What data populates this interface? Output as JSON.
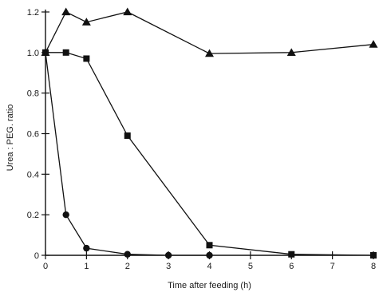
{
  "chart_data": {
    "type": "line",
    "xlabel": "Time after feeding (h)",
    "ylabel": "Urea : PEG. ratio",
    "xlim": [
      0,
      8
    ],
    "ylim": [
      0,
      1.2
    ],
    "xticks": [
      0,
      1,
      2,
      3,
      4,
      5,
      6,
      7,
      8
    ],
    "yticks": [
      0,
      0.2,
      0.4,
      0.6,
      0.8,
      1.0,
      1.2
    ],
    "ytick_labels": [
      "0",
      "0.2",
      "0.4",
      "0.6",
      "0.8",
      "1.0",
      "1.2"
    ],
    "grid": false,
    "legend": "none",
    "series": [
      {
        "marker": "triangle",
        "x": [
          0,
          0.5,
          1,
          2,
          4,
          6,
          8
        ],
        "y": [
          1.0,
          1.2,
          1.15,
          1.2,
          0.995,
          1.0,
          1.04
        ]
      },
      {
        "marker": "square",
        "x": [
          0,
          0.5,
          1,
          2,
          4,
          6,
          8
        ],
        "y": [
          1.0,
          1.0,
          0.97,
          0.59,
          0.05,
          0.005,
          0.0
        ]
      },
      {
        "marker": "circle",
        "x": [
          0,
          0.5,
          1,
          2,
          3,
          4
        ],
        "y": [
          1.0,
          0.2,
          0.035,
          0.005,
          0.0,
          0.0
        ]
      }
    ]
  }
}
